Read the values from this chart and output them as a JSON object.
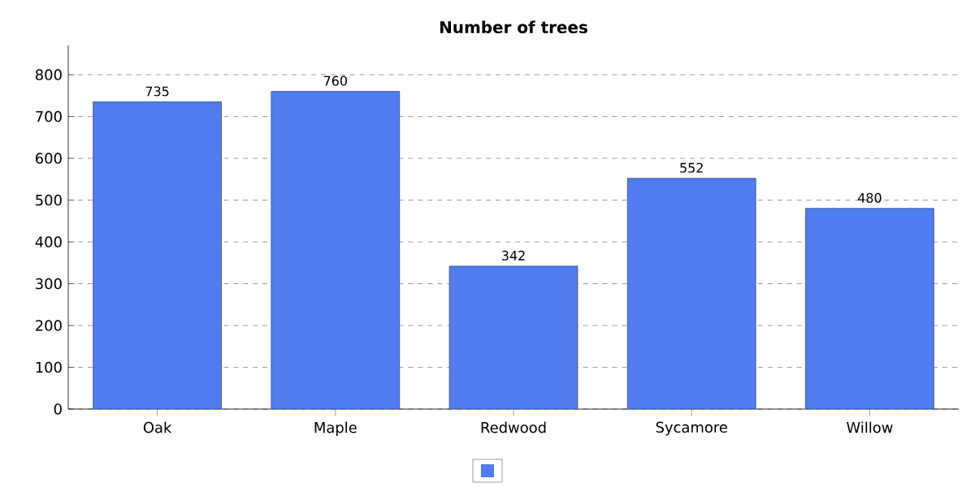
{
  "chart_data": {
    "type": "bar",
    "title": "Number of trees",
    "categories": [
      "Oak",
      "Maple",
      "Redwood",
      "Sycamore",
      "Willow"
    ],
    "values": [
      735,
      760,
      342,
      552,
      480
    ],
    "color": "#4f7cf0",
    "ylim": [
      0,
      870
    ],
    "yticks": [
      0,
      100,
      200,
      300,
      400,
      500,
      600,
      700,
      800
    ],
    "grid": "y",
    "data_labels": true
  }
}
